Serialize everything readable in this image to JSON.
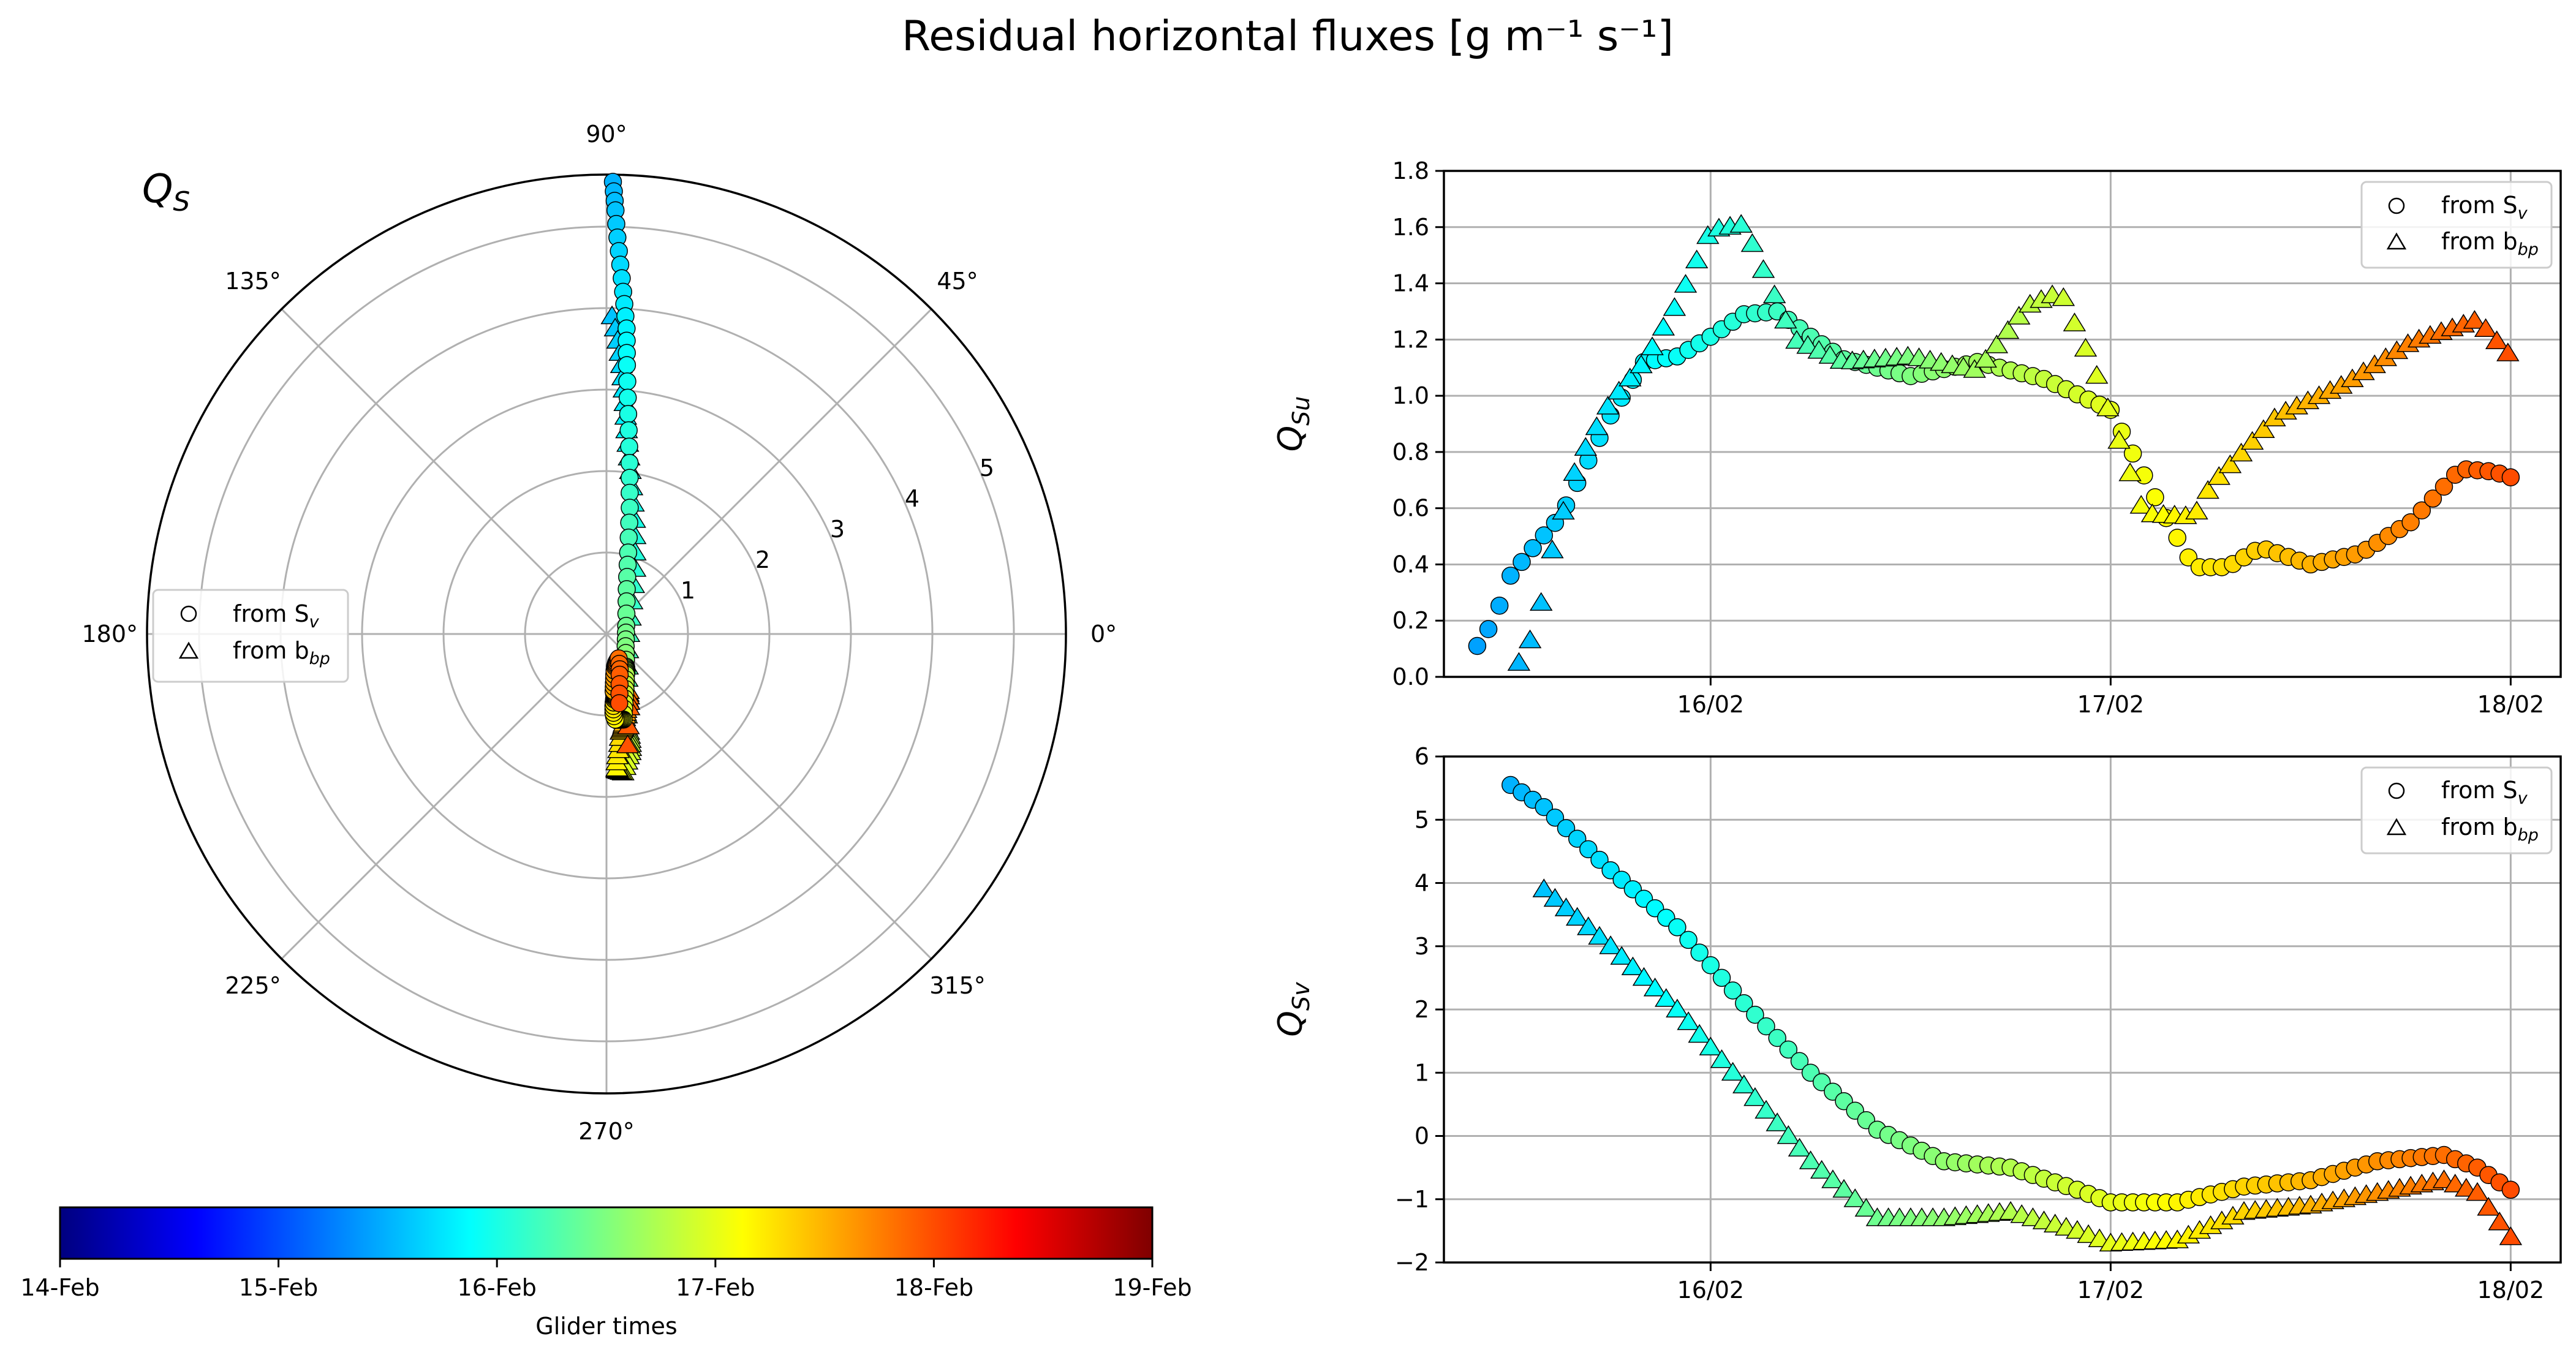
{
  "figure": {
    "title": "Residual horizontal fluxes [g m⁻¹ s⁻¹]"
  },
  "colormap": {
    "name": "jet",
    "stops": [
      "#00007f",
      "#0000ff",
      "#007fff",
      "#00ffff",
      "#7fff7f",
      "#ffff00",
      "#ff7f00",
      "#ff0000",
      "#7f0000"
    ],
    "label": "Glider times",
    "ticks": [
      "14-Feb",
      "15-Feb",
      "16-Feb",
      "17-Feb",
      "18-Feb",
      "19-Feb"
    ]
  },
  "legend": {
    "sv": "from S",
    "sv_sub": "v",
    "bbp": "from b",
    "bbp_sub": "bp"
  },
  "polar": {
    "label": "Q",
    "label_sub": "S",
    "angle_ticks": [
      "0°",
      "45°",
      "90°",
      "135°",
      "180°",
      "225°",
      "270°",
      "315°"
    ],
    "radial_ticks": [
      "1",
      "2",
      "3",
      "4",
      "5"
    ]
  },
  "top": {
    "ylabel": "Q",
    "ylabel_sub": "Su",
    "yticks": [
      "0.0",
      "0.2",
      "0.4",
      "0.6",
      "0.8",
      "1.0",
      "1.2",
      "1.4",
      "1.6",
      "1.8"
    ],
    "xticks": [
      "16/02",
      "17/02",
      "18/02"
    ]
  },
  "bottom": {
    "ylabel": "Q",
    "ylabel_sub": "Sv",
    "yticks": [
      "−2",
      "−1",
      "0",
      "1",
      "2",
      "3",
      "4",
      "5",
      "6"
    ],
    "xticks": [
      "16/02",
      "17/02",
      "18/02"
    ]
  },
  "chart_data": [
    {
      "type": "scatter",
      "panel": "top",
      "xlabel": "",
      "ylabel": "Q_Su",
      "ylim": [
        0,
        1.8
      ],
      "xlim": [
        "2018-02-15T08:00",
        "2018-02-18T03:00"
      ],
      "grid": true,
      "legend_position": "top-right",
      "series": [
        {
          "name": "from S_v",
          "marker": "circle",
          "x": [
            "2018-02-15T10:00",
            "2018-02-15T11:00",
            "2018-02-15T12:00",
            "2018-02-15T13:30",
            "2018-02-15T15:00",
            "2018-02-15T16:30",
            "2018-02-15T18:00",
            "2018-02-15T20:00",
            "2018-02-15T22:00",
            "2018-02-16T00:00",
            "2018-02-16T02:00",
            "2018-02-16T04:00",
            "2018-02-16T06:00",
            "2018-02-16T08:00",
            "2018-02-16T12:00",
            "2018-02-16T16:00",
            "2018-02-16T20:00",
            "2018-02-17T00:00",
            "2018-02-17T03:00",
            "2018-02-17T05:00",
            "2018-02-17T07:00",
            "2018-02-17T09:00",
            "2018-02-17T12:00",
            "2018-02-17T15:00",
            "2018-02-17T18:00",
            "2018-02-17T21:00",
            "2018-02-17T23:00",
            "2018-02-18T00:00"
          ],
          "y": [
            0.11,
            0.2,
            0.36,
            0.47,
            0.57,
            0.75,
            0.93,
            1.12,
            1.14,
            1.21,
            1.29,
            1.3,
            1.21,
            1.13,
            1.07,
            1.12,
            1.06,
            0.95,
            0.6,
            0.39,
            0.39,
            0.46,
            0.4,
            0.44,
            0.55,
            0.74,
            0.73,
            0.71
          ]
        },
        {
          "name": "from b_bp",
          "marker": "triangle",
          "x": [
            "2018-02-15T12:30",
            "2018-02-15T13:30",
            "2018-02-15T14:30",
            "2018-02-15T16:00",
            "2018-02-15T18:00",
            "2018-02-15T20:00",
            "2018-02-15T22:00",
            "2018-02-16T00:00",
            "2018-02-16T02:00",
            "2018-02-16T03:00",
            "2018-02-16T05:00",
            "2018-02-16T08:00",
            "2018-02-16T12:00",
            "2018-02-16T16:00",
            "2018-02-16T19:00",
            "2018-02-16T21:00",
            "2018-02-16T23:00",
            "2018-02-17T02:00",
            "2018-02-17T05:00",
            "2018-02-17T06:00",
            "2018-02-17T10:00",
            "2018-02-17T14:00",
            "2018-02-17T18:00",
            "2018-02-17T22:00",
            "2018-02-18T00:00"
          ],
          "y": [
            0.05,
            0.17,
            0.45,
            0.76,
            0.98,
            1.12,
            1.33,
            1.59,
            1.61,
            1.47,
            1.2,
            1.12,
            1.14,
            1.09,
            1.32,
            1.37,
            1.1,
            0.58,
            0.57,
            0.68,
            0.93,
            1.04,
            1.19,
            1.27,
            1.14
          ]
        }
      ]
    },
    {
      "type": "scatter",
      "panel": "bottom",
      "xlabel": "",
      "ylabel": "Q_Sv",
      "ylim": [
        -2,
        6
      ],
      "xlim": [
        "2018-02-15T08:00",
        "2018-02-18T03:00"
      ],
      "grid": true,
      "legend_position": "top-right",
      "series": [
        {
          "name": "from S_v",
          "marker": "circle",
          "x": [
            "2018-02-15T12:00",
            "2018-02-15T14:00",
            "2018-02-15T18:00",
            "2018-02-15T22:00",
            "2018-02-16T02:00",
            "2018-02-16T06:00",
            "2018-02-16T10:00",
            "2018-02-16T14:00",
            "2018-02-16T18:00",
            "2018-02-16T22:00",
            "2018-02-17T00:00",
            "2018-02-17T04:00",
            "2018-02-17T08:00",
            "2018-02-17T12:00",
            "2018-02-17T16:00",
            "2018-02-17T20:00",
            "2018-02-17T22:00",
            "2018-02-18T00:00"
          ],
          "y": [
            5.55,
            5.2,
            4.2,
            3.3,
            2.1,
            1.0,
            0.1,
            -0.4,
            -0.5,
            -0.85,
            -1.05,
            -1.05,
            -0.8,
            -0.7,
            -0.4,
            -0.3,
            -0.5,
            -0.85
          ]
        },
        {
          "name": "from b_bp",
          "marker": "triangle",
          "x": [
            "2018-02-15T14:00",
            "2018-02-15T18:00",
            "2018-02-15T22:00",
            "2018-02-16T02:00",
            "2018-02-16T06:00",
            "2018-02-16T10:00",
            "2018-02-16T14:00",
            "2018-02-16T18:00",
            "2018-02-16T22:00",
            "2018-02-17T00:00",
            "2018-02-17T04:00",
            "2018-02-17T08:00",
            "2018-02-17T12:00",
            "2018-02-17T16:00",
            "2018-02-17T20:00",
            "2018-02-17T22:00",
            "2018-02-18T00:00"
          ],
          "y": [
            3.9,
            3.0,
            2.0,
            0.8,
            -0.4,
            -1.3,
            -1.3,
            -1.2,
            -1.5,
            -1.7,
            -1.65,
            -1.2,
            -1.1,
            -0.9,
            -0.7,
            -0.9,
            -1.6
          ]
        }
      ]
    }
  ]
}
